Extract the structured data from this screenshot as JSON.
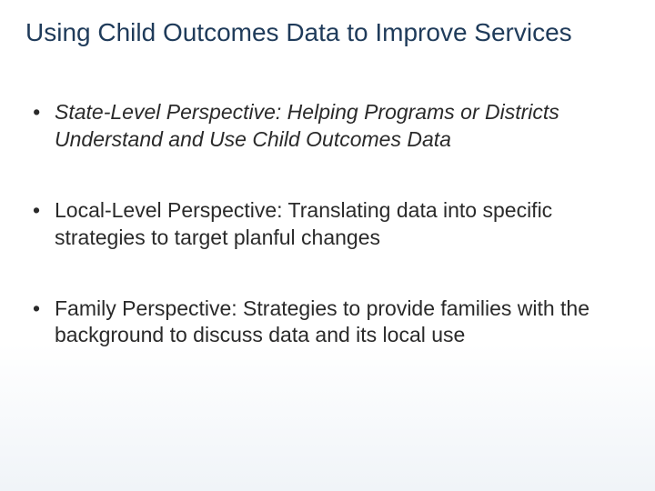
{
  "title_color": "#1f3b5a",
  "text_color": "#2a2a2a",
  "title": "Using Child Outcomes Data to Improve Services",
  "bullets": [
    {
      "text": "State-Level Perspective: Helping Programs or Districts Understand and Use Child Outcomes Data",
      "italic": true
    },
    {
      "text": "Local-Level Perspective: Translating data into specific strategies to target planful changes",
      "italic": false
    },
    {
      "text": "Family Perspective: Strategies to provide families with the background to discuss data and its local use",
      "italic": false
    }
  ]
}
